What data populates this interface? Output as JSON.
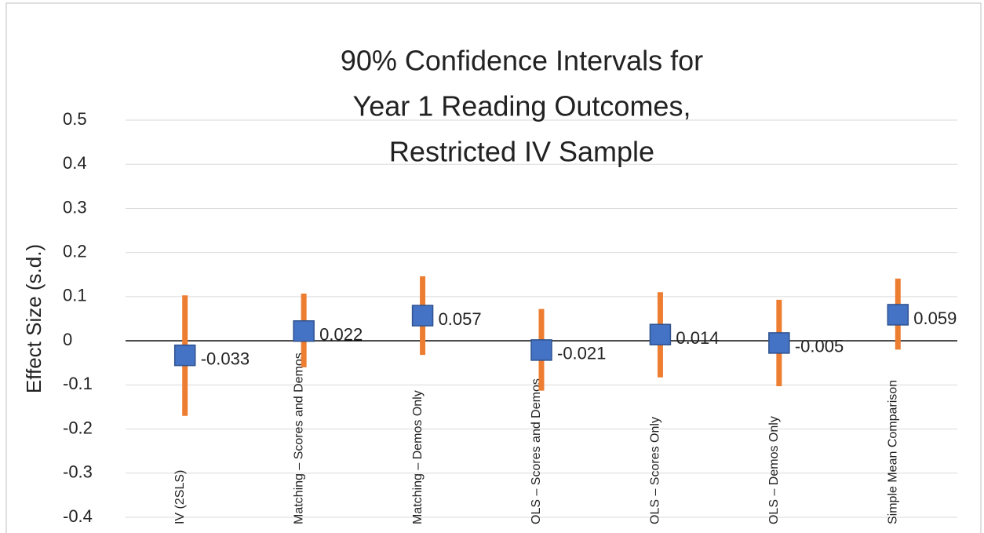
{
  "chart_data": {
    "type": "interval",
    "title": [
      "90% Confidence Intervals for",
      "Year 1 Reading Outcomes,",
      "Restricted IV Sample"
    ],
    "y_label": "Effect Size (s.d.)",
    "categories": [
      "IV (2SLS)",
      "Matching – Scores and Demos",
      "Matching – Demos Only",
      "OLS – Scores and Demos",
      "OLS – Scores Only",
      "OLS – Demos Only",
      "Simple Mean Comparison"
    ],
    "values": [
      -0.033,
      0.022,
      0.057,
      -0.021,
      0.014,
      -0.005,
      0.059
    ],
    "ci_low": [
      -0.17,
      -0.06,
      -0.032,
      -0.113,
      -0.083,
      -0.103,
      -0.02
    ],
    "ci_high": [
      0.103,
      0.107,
      0.146,
      0.072,
      0.11,
      0.093,
      0.141
    ],
    "color": "#4472c4",
    "ci_color": "#ed7d31",
    "ylim": [
      -0.4,
      0.5
    ],
    "yticks": [
      -0.4,
      -0.3,
      -0.2,
      -0.1,
      0,
      0.1,
      0.2,
      0.3,
      0.4,
      0.5
    ],
    "grid": true
  }
}
